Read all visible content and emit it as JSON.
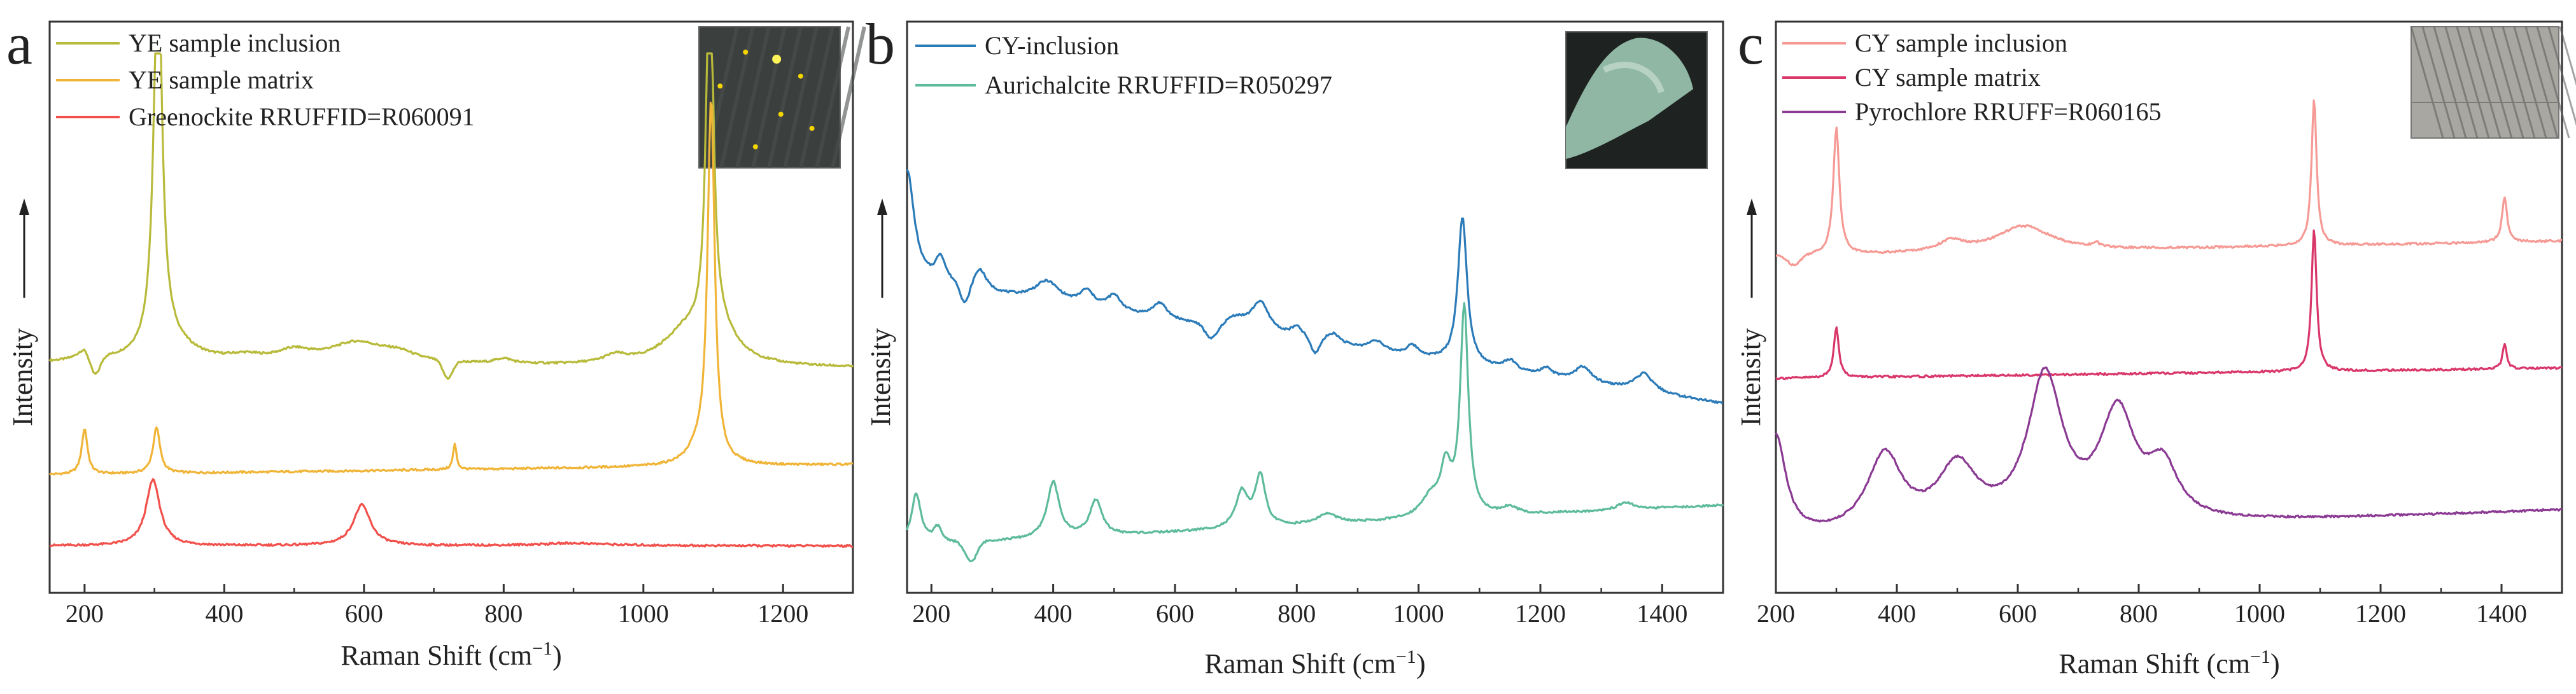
{
  "figure": {
    "ylabel": "Intensity"
  },
  "colors": {
    "ye_inclusion": "#b8ba3a",
    "ye_matrix": "#f0b437",
    "greenockite": "#f2504b",
    "cy_inclusion_b": "#2b7bb9",
    "aurichalcite": "#5dbb9c",
    "cy_inclusion_c": "#f59a95",
    "cy_matrix": "#d9366a",
    "pyrochlore": "#8b3a93"
  },
  "chart_data": [
    {
      "panel": "a",
      "type": "line",
      "xlabel": "Raman Shift (cm",
      "xlabel_sup": "−1",
      "xlabel_close": ")",
      "ylabel": "Intensity",
      "xlim": [
        150,
        1300
      ],
      "ylim": [
        0,
        1
      ],
      "xticks": [
        200,
        400,
        600,
        800,
        1000,
        1200
      ],
      "yticks": "none",
      "grid": false,
      "legend_position": "top-left",
      "inset": "micrograph top-right",
      "series": [
        {
          "name": "YE sample inclusion",
          "color": "#b8ba3a",
          "baseline": 0.39,
          "slope": -0.01,
          "peaks": [
            [
              200,
              0.02,
              12
            ],
            [
              305,
              0.79,
              7
            ],
            [
              320,
              0.04,
              40
            ],
            [
              430,
              0.01,
              30
            ],
            [
              500,
              0.02,
              30
            ],
            [
              590,
              0.04,
              50
            ],
            [
              650,
              0.015,
              30
            ],
            [
              800,
              0.01,
              15
            ],
            [
              960,
              0.015,
              20
            ],
            [
              1060,
              0.06,
              40
            ],
            [
              1095,
              0.77,
              6
            ],
            [
              1110,
              0.05,
              30
            ]
          ],
          "dips": [
            [
              215,
              0.04,
              10
            ],
            [
              720,
              0.035,
              10
            ]
          ]
        },
        {
          "name": "YE sample matrix",
          "color": "#f0b437",
          "baseline": 0.17,
          "slope": 0.02,
          "peaks": [
            [
              200,
              0.09,
              5
            ],
            [
              303,
              0.09,
              6
            ],
            [
              730,
              0.05,
              3
            ],
            [
              1097,
              0.71,
              6
            ],
            [
              1080,
              0.03,
              20
            ]
          ],
          "dips": []
        },
        {
          "name": "Greenockite RRUFFID=R060091",
          "color": "#f2504b",
          "baseline": 0.03,
          "slope": 0.0,
          "peaks": [
            [
              298,
              0.13,
              12
            ],
            [
              597,
              0.08,
              15
            ],
            [
              900,
              0.005,
              60
            ]
          ],
          "dips": []
        }
      ]
    },
    {
      "panel": "b",
      "type": "line",
      "xlabel": "Raman Shift (cm",
      "xlabel_sup": "−1",
      "xlabel_close": ")",
      "ylabel": "Intensity",
      "xlim": [
        160,
        1500
      ],
      "ylim": [
        0,
        1
      ],
      "xticks": [
        200,
        400,
        600,
        800,
        1000,
        1200,
        1400
      ],
      "yticks": "none",
      "grid": false,
      "legend_position": "top-left",
      "inset": "micrograph top-right",
      "series": [
        {
          "name": "CY-inclusion",
          "color": "#2b7bb9",
          "baseline": 0.55,
          "slope": -0.24,
          "peaks": [
            [
              160,
              0.22,
              14
            ],
            [
              215,
              0.05,
              10
            ],
            [
              280,
              0.04,
              12
            ],
            [
              390,
              0.04,
              25
            ],
            [
              455,
              0.03,
              14
            ],
            [
              500,
              0.03,
              14
            ],
            [
              575,
              0.03,
              14
            ],
            [
              700,
              0.02,
              20
            ],
            [
              740,
              0.06,
              18
            ],
            [
              800,
              0.02,
              12
            ],
            [
              860,
              0.02,
              14
            ],
            [
              930,
              0.02,
              14
            ],
            [
              990,
              0.02,
              12
            ],
            [
              1072,
              0.29,
              9
            ],
            [
              1150,
              0.02,
              12
            ],
            [
              1210,
              0.015,
              12
            ],
            [
              1270,
              0.03,
              16
            ],
            [
              1370,
              0.035,
              18
            ]
          ],
          "dips": [
            [
              255,
              0.04,
              10
            ],
            [
              660,
              0.03,
              15
            ],
            [
              830,
              0.03,
              10
            ]
          ]
        },
        {
          "name": "Aurichalcite RRUFFID=R050297",
          "color": "#5dbb9c",
          "baseline": 0.03,
          "slope": 0.08,
          "peaks": [
            [
              175,
              0.1,
              10
            ],
            [
              210,
              0.03,
              8
            ],
            [
              400,
              0.11,
              12
            ],
            [
              470,
              0.07,
              12
            ],
            [
              710,
              0.07,
              12
            ],
            [
              740,
              0.1,
              10
            ],
            [
              850,
              0.02,
              20
            ],
            [
              1020,
              0.04,
              20
            ],
            [
              1045,
              0.09,
              10
            ],
            [
              1075,
              0.41,
              8
            ],
            [
              1150,
              0.015,
              15
            ],
            [
              1340,
              0.015,
              15
            ]
          ],
          "dips": [
            [
              265,
              0.04,
              14
            ]
          ]
        }
      ]
    },
    {
      "panel": "c",
      "type": "line",
      "xlabel": "Raman Shift (cm",
      "xlabel_sup": "−1",
      "xlabel_close": ")",
      "ylabel": "Intensity",
      "xlim": [
        200,
        1500
      ],
      "ylim": [
        0,
        1
      ],
      "xticks": [
        200,
        400,
        600,
        800,
        1000,
        1200,
        1400
      ],
      "yticks": "none",
      "grid": false,
      "legend_position": "top-left",
      "inset": "micrograph top-right",
      "series": [
        {
          "name": "CY sample inclusion",
          "color": "#f59a95",
          "baseline": 0.6,
          "slope": 0.03,
          "peaks": [
            [
              300,
              0.25,
              6
            ],
            [
              490,
              0.02,
              25
            ],
            [
              610,
              0.05,
              55
            ],
            [
              730,
              0.01,
              5
            ],
            [
              1090,
              0.29,
              5
            ],
            [
              1405,
              0.09,
              5
            ]
          ],
          "dips": [
            [
              230,
              0.02,
              15
            ]
          ]
        },
        {
          "name": "CY sample matrix",
          "color": "#d9366a",
          "baseline": 0.36,
          "slope": 0.02,
          "peaks": [
            [
              300,
              0.1,
              5
            ],
            [
              1090,
              0.28,
              5
            ],
            [
              1405,
              0.05,
              4
            ]
          ],
          "dips": []
        },
        {
          "name": "Pyrochlore RRUFF=R060165",
          "color": "#8b3a93",
          "baseline": 0.04,
          "slope": 0.06,
          "peaks": [
            [
              200,
              0.2,
              20
            ],
            [
              380,
              0.15,
              35
            ],
            [
              500,
              0.12,
              40
            ],
            [
              645,
              0.29,
              35
            ],
            [
              765,
              0.21,
              35
            ],
            [
              840,
              0.1,
              30
            ]
          ],
          "dips": []
        }
      ]
    }
  ]
}
